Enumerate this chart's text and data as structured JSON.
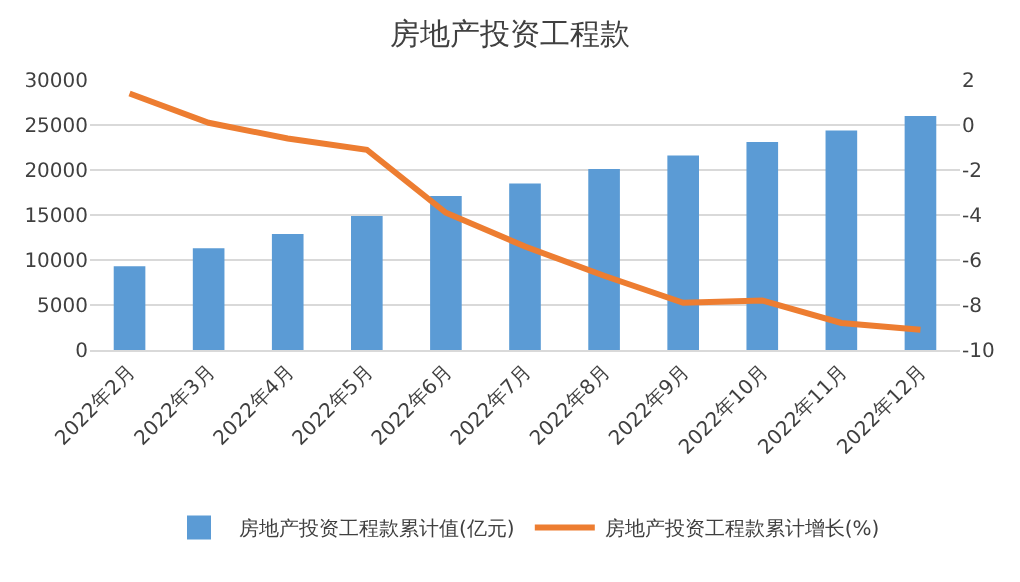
{
  "chart_data": {
    "type": "bar",
    "title": "房地产投资工程款",
    "categories": [
      "2022年2月",
      "2022年3月",
      "2022年4月",
      "2022年5月",
      "2022年6月",
      "2022年7月",
      "2022年8月",
      "2022年9月",
      "2022年10月",
      "2022年11月",
      "2022年12月"
    ],
    "series": [
      {
        "name": "房地产投资工程款累计值(亿元)",
        "color": "#5b9bd5",
        "values": [
          9300,
          11300,
          12900,
          14900,
          17100,
          18500,
          20100,
          21600,
          23100,
          24400,
          26000
        ]
      },
      {
        "name": "房地产投资工程款累计增长(%)",
        "type": "line",
        "axis": "y2",
        "color": "#ed7d31",
        "values": [
          1.4,
          0.1,
          -0.6,
          -1.1,
          -3.9,
          -5.4,
          -6.7,
          -7.9,
          -7.8,
          -8.8,
          -9.1
        ]
      }
    ],
    "ylim": [
      0,
      30000
    ],
    "yticks": [
      0,
      5000,
      10000,
      15000,
      20000,
      25000,
      30000
    ],
    "y2lim": [
      -10,
      2
    ],
    "y2ticks": [
      -10,
      -8,
      -6,
      -4,
      -2,
      0,
      2
    ],
    "grid": "y",
    "legend": "bottom",
    "marker": "none",
    "line_style": "solid"
  }
}
